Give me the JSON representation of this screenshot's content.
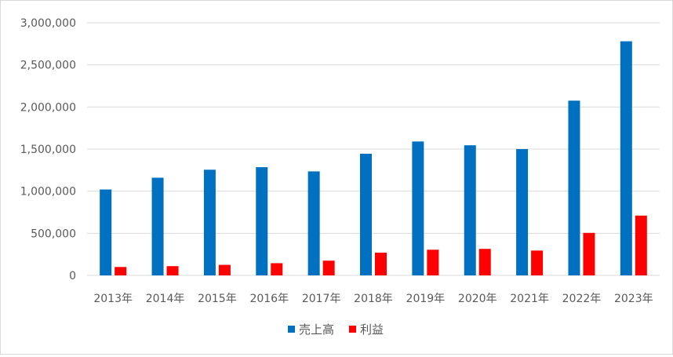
{
  "chart_data": {
    "type": "bar",
    "categories": [
      "2013年",
      "2014年",
      "2015年",
      "2016年",
      "2017年",
      "2018年",
      "2019年",
      "2020年",
      "2021年",
      "2022年",
      "2023年"
    ],
    "series": [
      {
        "name": "売上高",
        "color": "#0070c0",
        "values": [
          1020000,
          1160000,
          1255000,
          1285000,
          1235000,
          1445000,
          1590000,
          1545000,
          1500000,
          2075000,
          2780000
        ]
      },
      {
        "name": "利益",
        "color": "#ff0000",
        "values": [
          100000,
          110000,
          125000,
          145000,
          175000,
          270000,
          305000,
          315000,
          295000,
          505000,
          710000
        ]
      }
    ],
    "yticks": [
      "0",
      "500,000",
      "1,000,000",
      "1,500,000",
      "2,000,000",
      "2,500,000",
      "3,000,000"
    ],
    "ylim": [
      0,
      3000000
    ],
    "grid": true,
    "legend_position": "bottom"
  }
}
